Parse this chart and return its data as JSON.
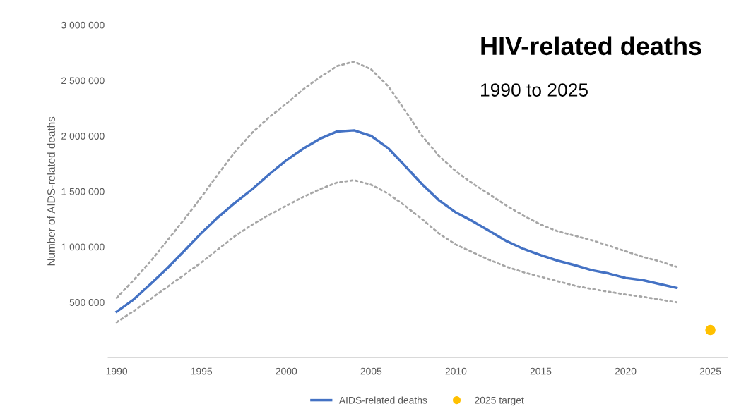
{
  "chart_data": {
    "type": "line",
    "title": "HIV-related deaths",
    "subtitle": "1990 to 2025",
    "ylabel": "Number of AIDS-related deaths",
    "x": [
      1990,
      1991,
      1992,
      1993,
      1994,
      1995,
      1996,
      1997,
      1998,
      1999,
      2000,
      2001,
      2002,
      2003,
      2004,
      2005,
      2006,
      2007,
      2008,
      2009,
      2010,
      2011,
      2012,
      2013,
      2014,
      2015,
      2016,
      2017,
      2018,
      2019,
      2020,
      2021,
      2022,
      2023
    ],
    "series": [
      {
        "name": "AIDS-related deaths",
        "color": "#4472c4",
        "line_style": "solid",
        "values": [
          415000,
          525000,
          665000,
          810000,
          965000,
          1125000,
          1270000,
          1400000,
          1520000,
          1655000,
          1780000,
          1885000,
          1975000,
          2040000,
          2050000,
          2000000,
          1890000,
          1730000,
          1565000,
          1420000,
          1310000,
          1230000,
          1140000,
          1050000,
          980000,
          925000,
          875000,
          835000,
          790000,
          760000,
          720000,
          700000,
          665000,
          630000
        ]
      },
      {
        "color": "#a6a6a6",
        "line_style": "dotted",
        "values": [
          540000,
          700000,
          870000,
          1060000,
          1250000,
          1450000,
          1660000,
          1860000,
          2030000,
          2170000,
          2290000,
          2420000,
          2530000,
          2630000,
          2670000,
          2600000,
          2450000,
          2230000,
          2000000,
          1820000,
          1680000,
          1570000,
          1470000,
          1370000,
          1280000,
          1200000,
          1140000,
          1100000,
          1060000,
          1010000,
          960000,
          910000,
          870000,
          820000
        ]
      },
      {
        "color": "#a6a6a6",
        "line_style": "dotted",
        "values": [
          320000,
          420000,
          530000,
          640000,
          750000,
          860000,
          980000,
          1100000,
          1200000,
          1290000,
          1370000,
          1450000,
          1520000,
          1580000,
          1600000,
          1560000,
          1480000,
          1370000,
          1250000,
          1120000,
          1020000,
          950000,
          880000,
          820000,
          770000,
          730000,
          690000,
          650000,
          620000,
          595000,
          570000,
          550000,
          525000,
          500000
        ]
      },
      {
        "name": "2025 target",
        "type": "scatter",
        "color": "#ffc000",
        "marker": "circle",
        "x": [
          2025
        ],
        "values": [
          250000
        ]
      }
    ],
    "xlim": [
      1989.5,
      2026
    ],
    "xticks": [
      1990,
      1995,
      2000,
      2005,
      2010,
      2015,
      2020,
      2025
    ],
    "ylim": [
      0,
      3000000
    ],
    "yticks": [
      {
        "value": 500000,
        "label": "500 000"
      },
      {
        "value": 1000000,
        "label": "1 000 000"
      },
      {
        "value": 1500000,
        "label": "1 500 000"
      },
      {
        "value": 2000000,
        "label": "2 000 000"
      },
      {
        "value": 2500000,
        "label": "2 500 000"
      },
      {
        "value": 3000000,
        "label": "3 000 000"
      }
    ],
    "grid": false,
    "legend": "bottom"
  }
}
